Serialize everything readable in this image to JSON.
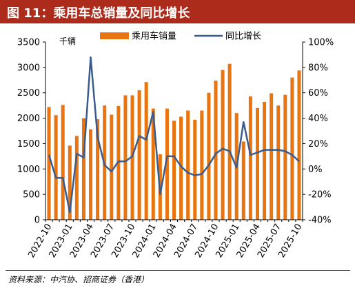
{
  "header": {
    "title": "图 11：乘用车总销量及同比增长"
  },
  "source": "资料来源：中汽协、招商证券（香港）",
  "colors": {
    "title_bar": "#ac2b1a",
    "bar": "#e8750f",
    "line": "#3b5b8c"
  },
  "chart_data": {
    "type": "bar",
    "left_axis_unit": "千辆",
    "legend_position": "top",
    "grid": false,
    "x_tick_labels": [
      "2022-10",
      "2023-01",
      "2023-04",
      "2023-07",
      "2023-10",
      "2024-01",
      "2024-04",
      "2024-07",
      "2024-10",
      "2025-01",
      "2025-04",
      "2025-07",
      "2025-10"
    ],
    "months": [
      "2022-10",
      "2022-11",
      "2022-12",
      "2023-01",
      "2023-02",
      "2023-03",
      "2023-04",
      "2023-05",
      "2023-06",
      "2023-07",
      "2023-08",
      "2023-09",
      "2023-10",
      "2023-11",
      "2023-12",
      "2024-01",
      "2024-02",
      "2024-03",
      "2024-04",
      "2024-05",
      "2024-06",
      "2024-07",
      "2024-08",
      "2024-09",
      "2024-10",
      "2024-11",
      "2024-12",
      "2025-01",
      "2025-02",
      "2025-03",
      "2025-04",
      "2025-05",
      "2025-06",
      "2025-07",
      "2025-08",
      "2025-09",
      "2025-10"
    ],
    "series": [
      {
        "name": "乘用车销量",
        "axis": "left",
        "type": "bar",
        "values": [
          2220,
          2060,
          2260,
          1460,
          1650,
          2000,
          1780,
          1980,
          2250,
          2070,
          2240,
          2450,
          2450,
          2550,
          2710,
          2190,
          1290,
          2190,
          1950,
          2030,
          2150,
          1970,
          2150,
          2500,
          2740,
          2950,
          3070,
          2100,
          1540,
          2430,
          2200,
          2320,
          2490,
          2250,
          2460,
          2800,
          2940
        ]
      },
      {
        "name": "同比增长",
        "axis": "right",
        "type": "line",
        "values": [
          11,
          -7,
          -7,
          -34,
          12,
          9,
          88,
          25,
          3,
          -2,
          6,
          6,
          10,
          26,
          23,
          45,
          -20,
          10,
          10,
          2,
          -3,
          -5,
          -4,
          3,
          12,
          16,
          14,
          1,
          37,
          11,
          13,
          15,
          15,
          15,
          14,
          11,
          6
        ]
      }
    ],
    "left_axis": {
      "ylim": [
        0,
        3500
      ],
      "ticks": [
        0,
        500,
        1000,
        1500,
        2000,
        2500,
        3000,
        3500
      ]
    },
    "right_axis": {
      "ylim": [
        -40,
        100
      ],
      "ticks": [
        "-40%",
        "-20%",
        "0%",
        "20%",
        "40%",
        "60%",
        "80%",
        "100%"
      ]
    }
  }
}
